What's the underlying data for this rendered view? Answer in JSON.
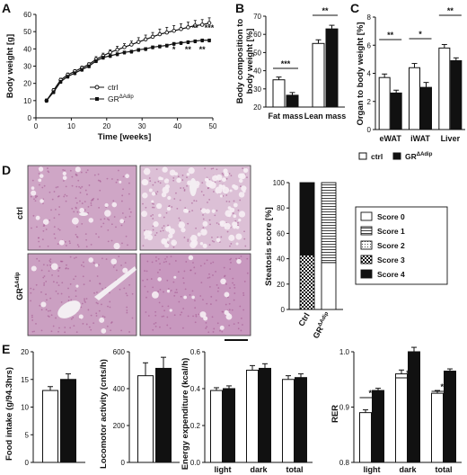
{
  "panels": {
    "A": "A",
    "B": "B",
    "C": "C",
    "D": "D",
    "E": "E"
  },
  "chart_data": [
    {
      "id": "A",
      "type": "line",
      "xlabel": "Time [weeks]",
      "ylabel": "Body weight [g]",
      "xlim": [
        0,
        50
      ],
      "ylim": [
        0,
        60
      ],
      "xticks": [
        0,
        10,
        20,
        30,
        40,
        50
      ],
      "yticks": [
        0,
        10,
        20,
        30,
        40,
        50,
        60
      ],
      "x": [
        3,
        5,
        7,
        9,
        11,
        13,
        15,
        17,
        19,
        21,
        23,
        25,
        27,
        29,
        31,
        33,
        35,
        37,
        39,
        41,
        43,
        45,
        47,
        49
      ],
      "series": [
        {
          "name": "ctrl",
          "marker": "open-circle",
          "values": [
            10,
            16,
            22,
            25,
            27,
            29,
            31,
            34,
            36,
            38,
            39.5,
            41,
            42.5,
            44,
            45.5,
            47,
            48.5,
            49.5,
            50.5,
            51.5,
            52.5,
            53.5,
            54,
            55
          ],
          "errors": [
            1,
            1,
            1,
            1,
            1,
            1,
            1,
            1.5,
            1.5,
            1.5,
            2,
            2,
            2,
            2.5,
            2.5,
            2.5,
            3,
            3,
            3,
            3,
            3,
            3,
            3,
            3
          ]
        },
        {
          "name": "GR",
          "name_sup": "ΔAdip",
          "marker": "filled-square",
          "values": [
            10,
            15,
            21,
            24,
            26,
            28,
            30,
            33,
            35,
            36,
            37,
            38,
            38.5,
            39.5,
            40,
            41,
            41.5,
            42,
            43,
            43.5,
            44,
            44.5,
            45,
            45
          ],
          "errors": [
            1,
            1,
            1,
            1,
            1,
            1,
            1,
            1,
            1,
            1,
            1,
            1,
            1,
            1,
            1,
            1,
            1,
            1,
            1,
            1,
            1,
            1,
            1,
            1
          ]
        }
      ],
      "annotations_top": [
        {
          "x": 45,
          "text": "**"
        },
        {
          "x": 49,
          "text": "***"
        }
      ],
      "annotations_bottom": [
        {
          "x": 39,
          "text": "*"
        },
        {
          "x": 43,
          "text": "**"
        },
        {
          "x": 47,
          "text": "**"
        }
      ],
      "legend": "bottom-right"
    },
    {
      "id": "B",
      "type": "bar",
      "ylabel": "Body composition to body weight [%]",
      "ylim": [
        20,
        70
      ],
      "yticks": [
        20,
        30,
        40,
        50,
        60,
        70
      ],
      "categories": [
        "Fat mass",
        "Lean mass"
      ],
      "series": [
        {
          "name": "ctrl",
          "values": [
            35,
            55
          ],
          "errors": [
            1.5,
            2
          ]
        },
        {
          "name": "GR",
          "values": [
            26.5,
            63
          ],
          "errors": [
            1.5,
            2
          ]
        }
      ],
      "significance": [
        "***",
        "**"
      ]
    },
    {
      "id": "C",
      "type": "bar",
      "ylabel": "Organ to body weight [%]",
      "ylim": [
        0,
        8
      ],
      "yticks": [
        0,
        2,
        4,
        6,
        8
      ],
      "categories": [
        "eWAT",
        "iWAT",
        "Liver"
      ],
      "series": [
        {
          "name": "ctrl",
          "values": [
            3.7,
            4.4,
            5.8
          ],
          "errors": [
            0.25,
            0.3,
            0.25
          ]
        },
        {
          "name": "GR",
          "values": [
            2.6,
            3.0,
            4.9
          ],
          "errors": [
            0.2,
            0.35,
            0.2
          ]
        }
      ],
      "significance": [
        "**",
        "*",
        "**"
      ],
      "legend": "bottom"
    },
    {
      "id": "D-steatosis",
      "type": "bar",
      "stacked": true,
      "ylabel": "Steatosis score [%]",
      "ylim": [
        0,
        100
      ],
      "yticks": [
        0,
        20,
        40,
        60,
        80,
        100
      ],
      "categories": [
        "Ctrl",
        "GR"
      ],
      "series": [
        {
          "name": "Score 0",
          "values": [
            0,
            37
          ]
        },
        {
          "name": "Score 1",
          "values": [
            0,
            63
          ]
        },
        {
          "name": "Score 2",
          "values": [
            0,
            0
          ]
        },
        {
          "name": "Score 3",
          "values": [
            43,
            0
          ]
        },
        {
          "name": "Score 4",
          "values": [
            57,
            0
          ]
        }
      ],
      "legend": "right"
    },
    {
      "id": "E-food",
      "type": "bar",
      "ylabel": "Food intake (g/94.3hrs)",
      "ylim": [
        0,
        20
      ],
      "yticks": [
        0,
        5,
        10,
        15,
        20
      ],
      "series": [
        {
          "name": "ctrl",
          "values": [
            13
          ],
          "errors": [
            0.7
          ]
        },
        {
          "name": "GR",
          "values": [
            15
          ],
          "errors": [
            1
          ]
        }
      ]
    },
    {
      "id": "E-locomotor",
      "type": "bar",
      "ylabel": "Locomotor activity (cnts/h)",
      "ylim": [
        0,
        600
      ],
      "yticks": [
        0,
        200,
        400,
        600
      ],
      "series": [
        {
          "name": "ctrl",
          "values": [
            470
          ],
          "errors": [
            70
          ]
        },
        {
          "name": "GR",
          "values": [
            510
          ],
          "errors": [
            60
          ]
        }
      ]
    },
    {
      "id": "E-energy",
      "type": "bar",
      "ylabel": "Energy expenditure (kcal/h)",
      "ylim": [
        0,
        0.6
      ],
      "yticks": [
        0.0,
        0.2,
        0.4,
        0.6
      ],
      "categories": [
        "light",
        "dark",
        "total"
      ],
      "series": [
        {
          "name": "ctrl",
          "values": [
            0.39,
            0.5,
            0.45
          ],
          "errors": [
            0.015,
            0.025,
            0.02
          ]
        },
        {
          "name": "GR",
          "values": [
            0.4,
            0.51,
            0.46
          ],
          "errors": [
            0.015,
            0.025,
            0.02
          ]
        }
      ]
    },
    {
      "id": "E-rer",
      "type": "bar",
      "ylabel": "RER",
      "ylim": [
        0.8,
        1.0
      ],
      "yticks": [
        0.8,
        0.9,
        1.0
      ],
      "categories": [
        "light",
        "dark",
        "total"
      ],
      "series": [
        {
          "name": "ctrl",
          "values": [
            0.89,
            0.96,
            0.925
          ],
          "errors": [
            0.005,
            0.007,
            0.005
          ]
        },
        {
          "name": "GR",
          "values": [
            0.93,
            1.0,
            0.965
          ],
          "errors": [
            0.004,
            0.008,
            0.004
          ]
        }
      ],
      "significance": [
        "**",
        "*",
        "**"
      ]
    }
  ],
  "panel_d": {
    "row_labels": [
      "ctrl",
      "GR"
    ],
    "row_label_sup": "ΔAdip",
    "micrographs": [
      "liver-histology-ctrl-low",
      "liver-histology-ctrl-high",
      "liver-histology-gr-low",
      "liver-histology-gr-high"
    ]
  },
  "colors": {
    "ctrl_fill": "#ffffff",
    "gr_fill": "#111111",
    "histology_bg": "#cfa6c6",
    "histology_dark": "#a2538e"
  }
}
